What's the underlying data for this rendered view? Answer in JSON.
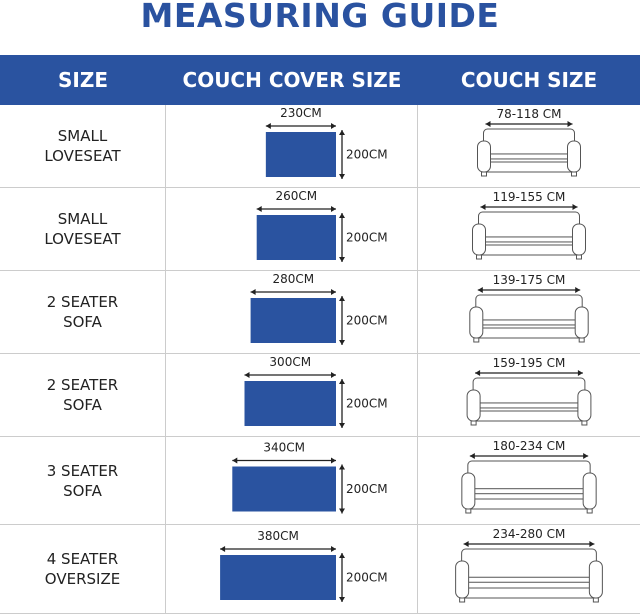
{
  "title": "MEASURING GUIDE",
  "colors": {
    "accent": "#2a53a0"
  },
  "headers": {
    "size": "SIZE",
    "cover": "COUCH COVER SIZE",
    "couch": "COUCH SIZE"
  },
  "rows": [
    {
      "size": "SMALL\nLOVESEAT",
      "cover_width": "230CM",
      "cover_width_cm": 230,
      "cover_height": "200CM",
      "couch_size": "78-118 CM",
      "couch_max_cm": 118
    },
    {
      "size": "SMALL\nLOVESEAT",
      "cover_width": "260CM",
      "cover_width_cm": 260,
      "cover_height": "200CM",
      "couch_size": "119-155 CM",
      "couch_max_cm": 155
    },
    {
      "size": "2 SEATER\nSOFA",
      "cover_width": "280CM",
      "cover_width_cm": 280,
      "cover_height": "200CM",
      "couch_size": "139-175 CM",
      "couch_max_cm": 175
    },
    {
      "size": "2 SEATER\nSOFA",
      "cover_width": "300CM",
      "cover_width_cm": 300,
      "cover_height": "200CM",
      "couch_size": "159-195 CM",
      "couch_max_cm": 195
    },
    {
      "size": "3 SEATER\nSOFA",
      "cover_width": "340CM",
      "cover_width_cm": 340,
      "cover_height": "200CM",
      "couch_size": "180-234 CM",
      "couch_max_cm": 234
    },
    {
      "size": "4 SEATER\nOVERSIZE",
      "cover_width": "380CM",
      "cover_width_cm": 380,
      "cover_height": "200CM",
      "couch_size": "234-280 CM",
      "couch_max_cm": 280
    }
  ]
}
